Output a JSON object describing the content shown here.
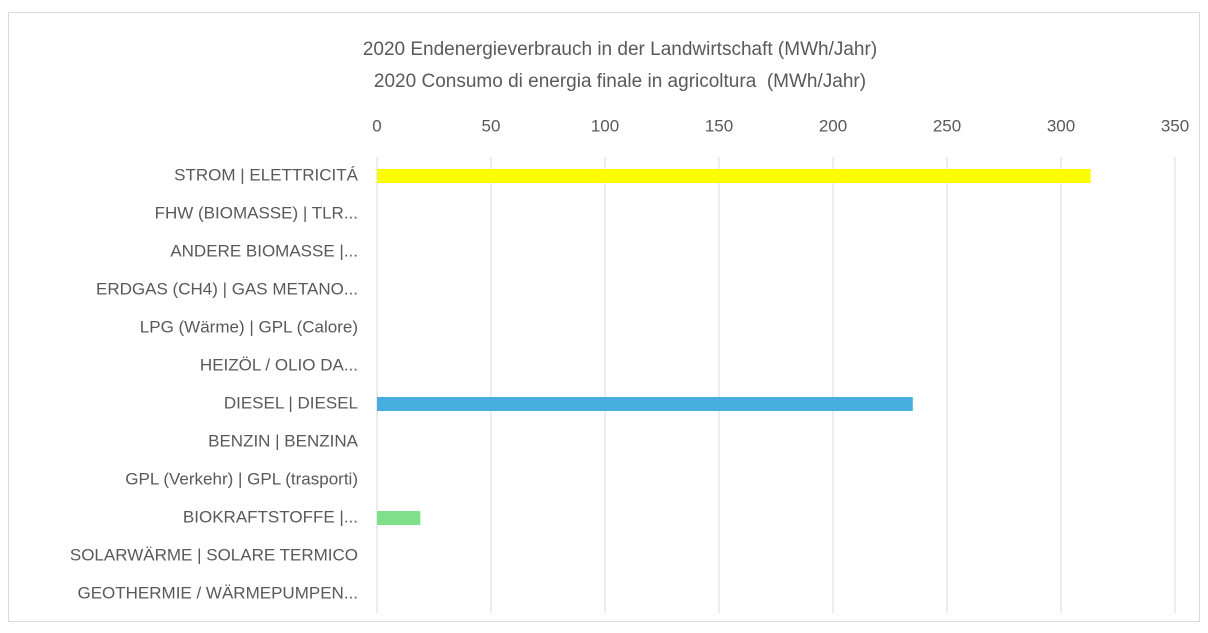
{
  "chart_data": {
    "type": "bar",
    "orientation": "horizontal",
    "title": [
      "2020 Endenergieverbrauch in der Landwirtschaft (MWh/Jahr)",
      "2020 Consumo di energia finale in agricoltura  (MWh/Jahr)"
    ],
    "categories": [
      "STROM | ELETTRICITÁ",
      "FHW (BIOMASSE) | TLR...",
      "ANDERE BIOMASSE |...",
      "ERDGAS (CH4) | GAS METANO...",
      "LPG (Wärme) | GPL (Calore)",
      "HEIZÖL / OLIO DA...",
      "DIESEL | DIESEL",
      "BENZIN | BENZINA",
      "GPL (Verkehr) | GPL (trasporti)",
      "BIOKRAFTSTOFFE |...",
      "SOLARWÄRME | SOLARE TERMICO",
      "GEOTHERMIE / WÄRMEPUMPEN..."
    ],
    "values": [
      313,
      0,
      0,
      0,
      0,
      0,
      235,
      0,
      0,
      19,
      0,
      0
    ],
    "colors": [
      "#ffff00",
      null,
      null,
      null,
      null,
      null,
      "#47aee0",
      null,
      null,
      "#7fe08a",
      null,
      null
    ],
    "xlim": [
      0,
      350
    ],
    "xticks": [
      0,
      50,
      100,
      150,
      200,
      250,
      300,
      350
    ],
    "grid": true
  }
}
